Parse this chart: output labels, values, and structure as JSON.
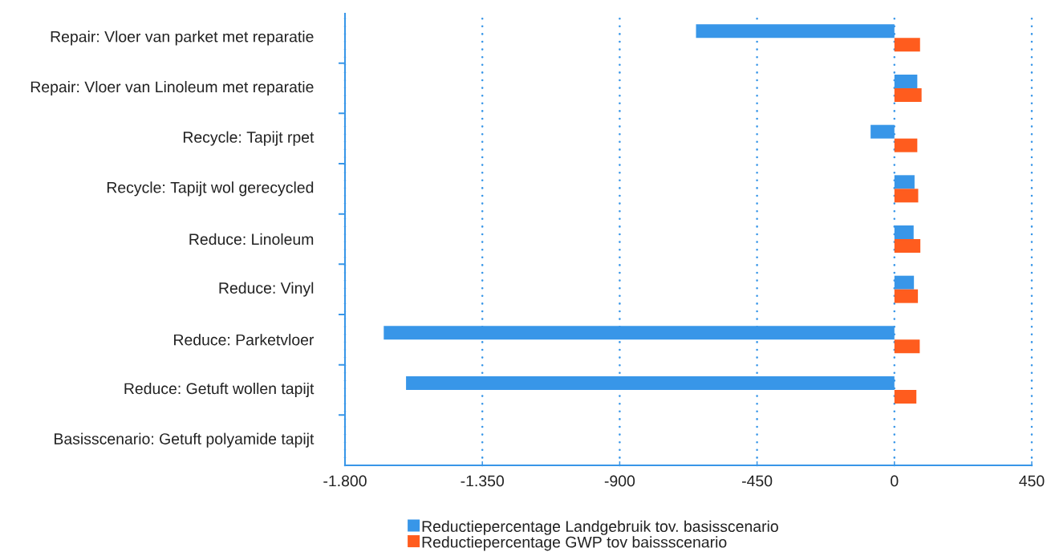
{
  "chart_data": {
    "type": "bar",
    "orientation": "horizontal",
    "categories": [
      "Repair: Vloer van parket met reparatie",
      "Repair: Vloer van Linoleum met reparatie",
      "Recycle: Tapijt rpet",
      "Recycle: Tapijt wol gerecycled",
      "Reduce: Linoleum",
      "Reduce: Vinyl",
      "Reduce: Parketvloer",
      "Reduce: Getuft wollen tapijt",
      "Basisscenario: Getuft polyamide tapijt"
    ],
    "series": [
      {
        "name": "Reductiepercentage Landgebruik tov. basisscenario",
        "color": "#3896e8",
        "values": [
          -650,
          75,
          -78,
          66,
          63,
          64,
          -1673,
          -1600,
          null
        ]
      },
      {
        "name": "Reductiepercentage GWP tov baissscenario",
        "color": "#ff5c1e",
        "values": [
          84,
          89,
          75,
          78,
          85,
          77,
          83,
          72,
          null
        ]
      }
    ],
    "xlim": [
      -1800,
      450
    ],
    "xticks": [
      {
        "value": -1800,
        "label": "-1.800"
      },
      {
        "value": -1350,
        "label": "-1.350"
      },
      -900,
      -450,
      0,
      450
    ],
    "grid": "x",
    "legend": "bottom"
  }
}
